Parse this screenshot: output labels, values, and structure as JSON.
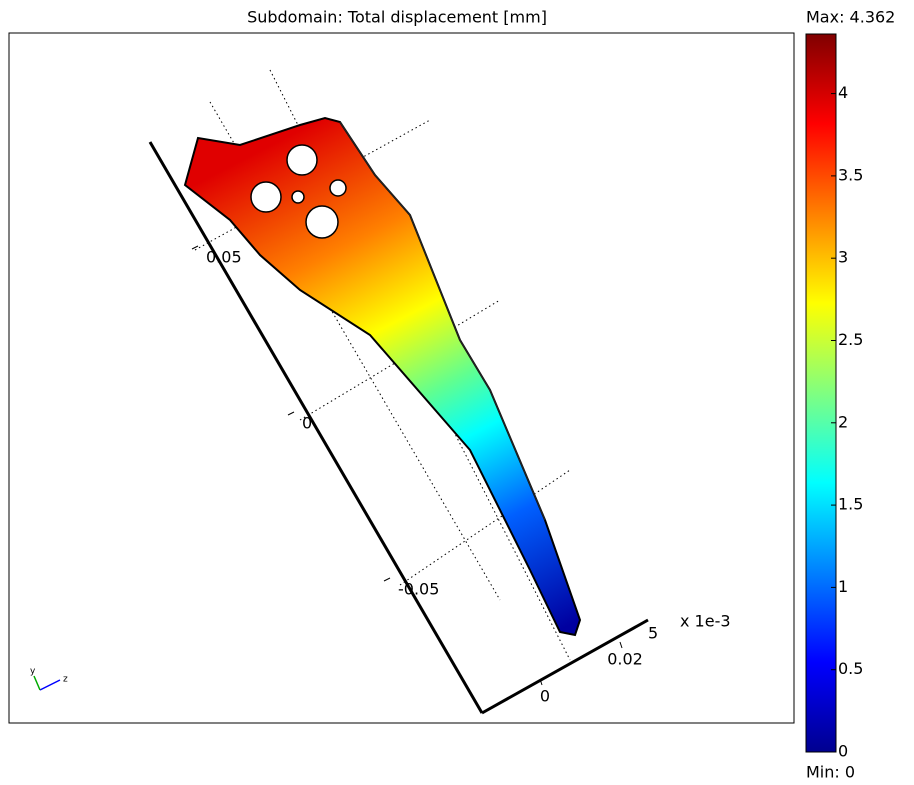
{
  "chart_data": {
    "type": "surface",
    "title": "Subdomain: Total displacement [mm]",
    "max_label": "Max: 4.362",
    "min_label": "Min: 0",
    "colorbar": {
      "ylim": [
        0,
        4.362
      ],
      "yticks": [
        0,
        0.5,
        1,
        1.5,
        2,
        2.5,
        3,
        3.5,
        4
      ],
      "colormap": [
        "#00008f",
        "#0000ff",
        "#0080ff",
        "#00ffff",
        "#80ff80",
        "#ffff00",
        "#ff8000",
        "#ff0000",
        "#800000"
      ]
    },
    "y_axis_ticks": [
      0.05,
      0,
      -0.05
    ],
    "x_axis_ticks": [
      0,
      0.02
    ],
    "x_axis_multiplier": "x 1e-3",
    "z_axis_tick": 5,
    "triad": [
      "y",
      "z"
    ]
  }
}
